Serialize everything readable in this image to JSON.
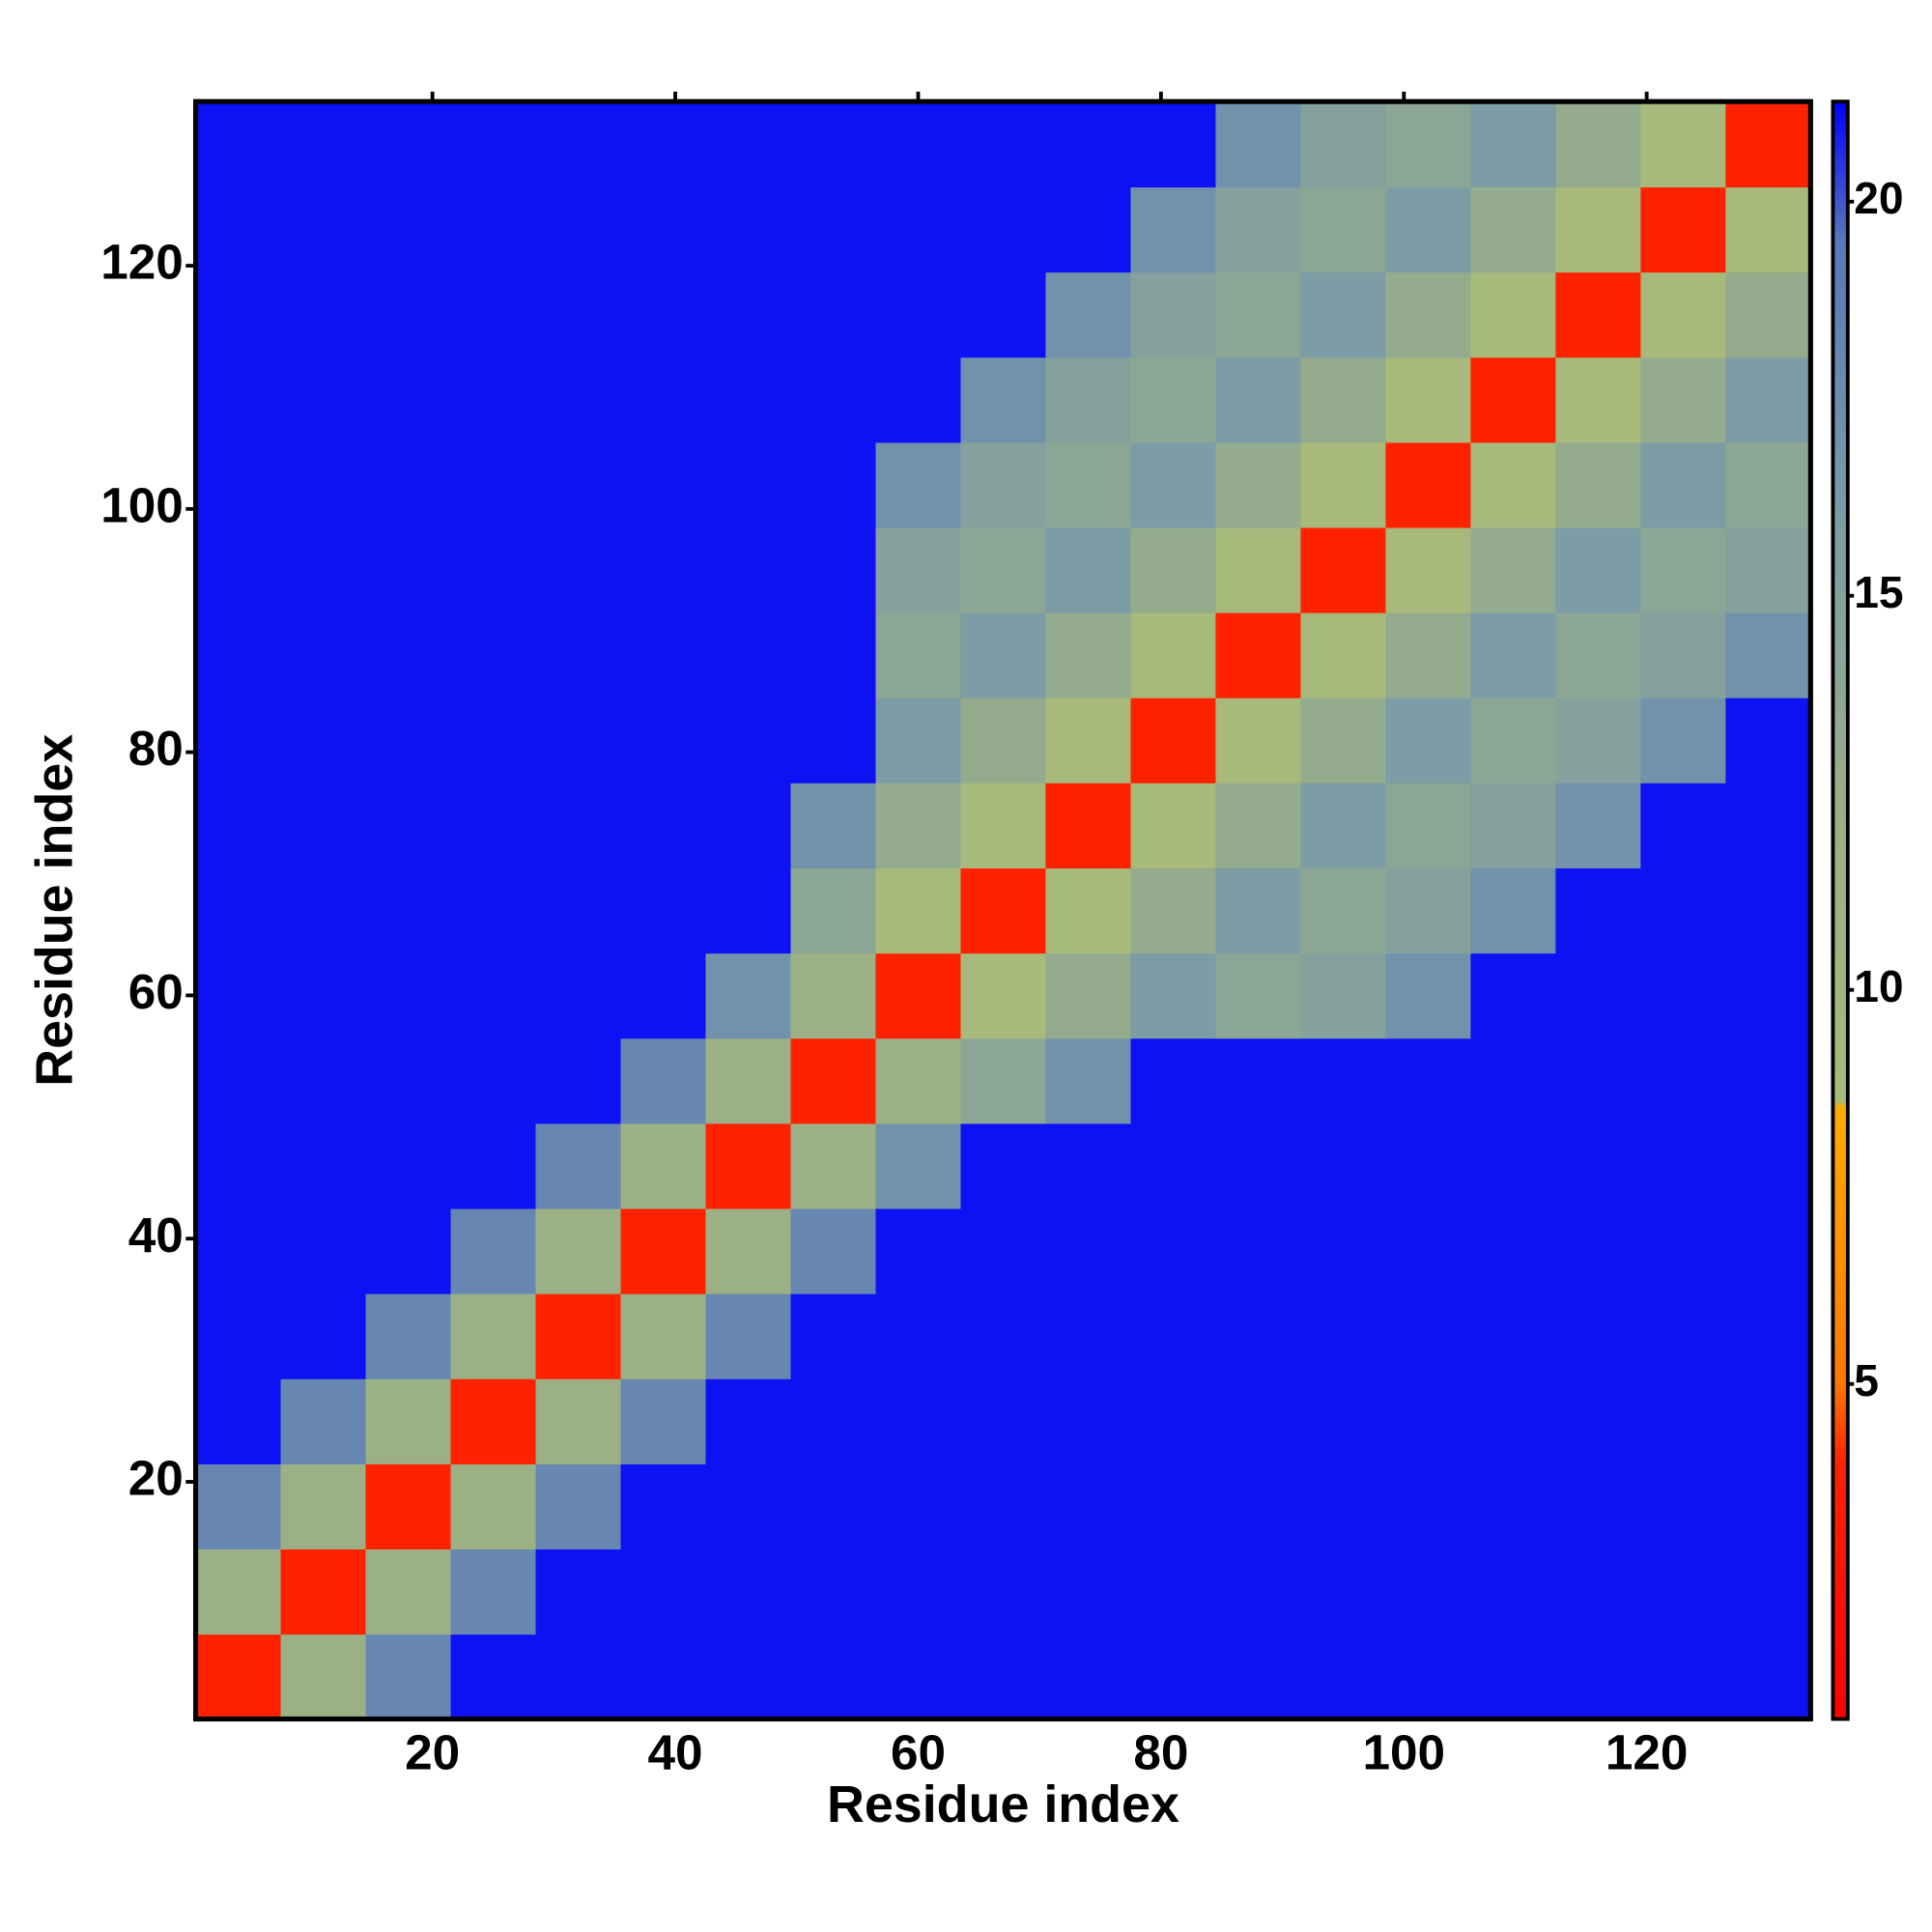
{
  "chart_data": {
    "type": "heatmap",
    "xlabel": "Residue index",
    "ylabel": "Residue index",
    "x": [
      4,
      11,
      18,
      25,
      32,
      39,
      46,
      53,
      60,
      67,
      74,
      81,
      88,
      95,
      102,
      109,
      116,
      123,
      130
    ],
    "y": [
      4,
      11,
      18,
      25,
      32,
      39,
      46,
      53,
      60,
      67,
      74,
      81,
      88,
      95,
      102,
      109,
      116,
      123,
      130
    ],
    "xlim": [
      0.5,
      133.5
    ],
    "ylim": [
      0.5,
      133.5
    ],
    "xticks": [
      20,
      40,
      60,
      80,
      100,
      120
    ],
    "yticks": [
      20,
      40,
      60,
      80,
      100,
      120
    ],
    "clim": [
      0.75,
      21.27
    ],
    "cticks": [
      5,
      10,
      15,
      20
    ],
    "colormap": [
      {
        "value": 0.75,
        "color": "#ff0000"
      },
      {
        "value": 4,
        "color": "#ff2200"
      },
      {
        "value": 5,
        "color": "#ff7700"
      },
      {
        "value": 8.5,
        "color": "#ffaa00"
      },
      {
        "value": 8.6,
        "color": "#a8ba7a"
      },
      {
        "value": 12,
        "color": "#9cb086"
      },
      {
        "value": 16,
        "color": "#7c9ca6"
      },
      {
        "value": 19.5,
        "color": "#5878ba"
      },
      {
        "value": 21.27,
        "color": "#0000ff"
      }
    ],
    "values": [
      [
        4,
        12,
        18,
        21,
        21,
        21,
        21,
        21,
        21,
        21,
        21,
        21,
        21,
        21,
        21,
        21,
        21,
        21,
        21
      ],
      [
        12,
        4,
        12,
        18,
        21,
        21,
        21,
        21,
        21,
        21,
        21,
        21,
        21,
        21,
        21,
        21,
        21,
        21,
        21
      ],
      [
        18,
        12,
        4,
        12,
        18,
        21,
        21,
        21,
        21,
        21,
        21,
        21,
        21,
        21,
        21,
        21,
        21,
        21,
        21
      ],
      [
        21,
        18,
        12,
        4,
        12,
        18,
        21,
        21,
        21,
        21,
        21,
        21,
        21,
        21,
        21,
        21,
        21,
        21,
        21
      ],
      [
        21,
        21,
        18,
        12,
        4,
        12,
        18,
        21,
        21,
        21,
        21,
        21,
        21,
        21,
        21,
        21,
        21,
        21,
        21
      ],
      [
        21,
        21,
        21,
        18,
        12,
        4,
        12,
        18,
        21,
        21,
        21,
        21,
        21,
        21,
        21,
        21,
        21,
        21,
        21
      ],
      [
        21,
        21,
        21,
        21,
        18,
        12,
        4,
        12,
        17,
        21,
        21,
        21,
        21,
        21,
        21,
        21,
        21,
        21,
        21
      ],
      [
        21,
        21,
        21,
        21,
        21,
        18,
        12,
        4,
        12,
        14,
        17,
        21,
        21,
        21,
        21,
        21,
        21,
        21,
        21
      ],
      [
        21,
        21,
        21,
        21,
        21,
        21,
        17,
        12,
        4,
        9,
        13,
        16,
        14,
        15,
        17,
        21,
        21,
        21,
        21
      ],
      [
        21,
        21,
        21,
        21,
        21,
        21,
        21,
        14,
        9,
        4,
        9,
        13,
        16,
        14,
        15,
        17,
        21,
        21,
        21
      ],
      [
        21,
        21,
        21,
        21,
        21,
        21,
        21,
        17,
        13,
        9,
        4,
        9,
        13,
        16,
        14,
        15,
        17,
        21,
        21
      ],
      [
        21,
        21,
        21,
        21,
        21,
        21,
        21,
        21,
        16,
        13,
        9,
        4,
        9,
        13,
        16,
        14,
        15,
        17,
        21
      ],
      [
        21,
        21,
        21,
        21,
        21,
        21,
        21,
        21,
        14,
        16,
        13,
        9,
        4,
        9,
        13,
        16,
        14,
        15,
        17
      ],
      [
        21,
        21,
        21,
        21,
        21,
        21,
        21,
        21,
        15,
        14,
        16,
        13,
        9,
        4,
        9,
        13,
        16,
        14,
        15
      ],
      [
        21,
        21,
        21,
        21,
        21,
        21,
        21,
        21,
        17,
        15,
        14,
        16,
        13,
        9,
        4,
        9,
        13,
        16,
        14
      ],
      [
        21,
        21,
        21,
        21,
        21,
        21,
        21,
        21,
        21,
        17,
        15,
        14,
        16,
        13,
        9,
        4,
        9,
        13,
        16
      ],
      [
        21,
        21,
        21,
        21,
        21,
        21,
        21,
        21,
        21,
        21,
        17,
        15,
        14,
        16,
        13,
        9,
        4,
        9,
        13
      ],
      [
        21,
        21,
        21,
        21,
        21,
        21,
        21,
        21,
        21,
        21,
        21,
        17,
        15,
        14,
        16,
        13,
        9,
        4,
        9
      ],
      [
        21,
        21,
        21,
        21,
        21,
        21,
        21,
        21,
        21,
        21,
        21,
        21,
        17,
        15,
        14,
        16,
        13,
        9,
        4
      ]
    ]
  }
}
